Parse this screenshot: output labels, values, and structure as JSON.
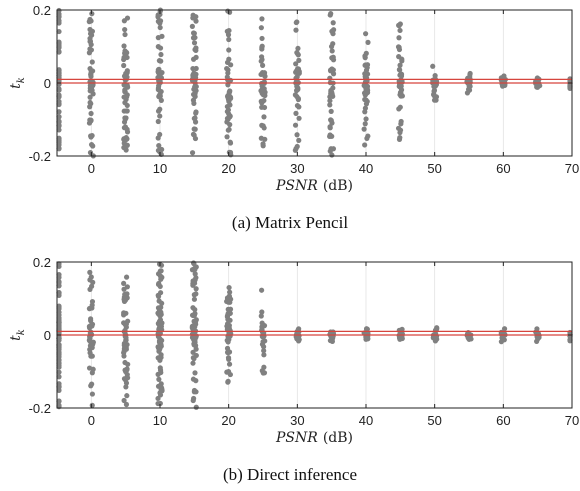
{
  "chart_data": [
    {
      "type": "scatter",
      "panel": "a",
      "caption": "(a) Matrix Pencil",
      "xlabel_symbol": "PSNR",
      "xlabel_unit": "(dB)",
      "ylabel_symbol": "t",
      "ylabel_sub": "k",
      "xlim": [
        -5,
        70
      ],
      "ylim": [
        -0.2,
        0.2
      ],
      "xticks": [
        0,
        10,
        20,
        30,
        40,
        50,
        60,
        70
      ],
      "yticks": [
        -0.2,
        0,
        0.2
      ],
      "ytick_labels": [
        "-0.2",
        "0",
        "0.2"
      ],
      "grid": "vertical",
      "marker_color": "#808080",
      "ref_lines": {
        "color": "#d6453d",
        "y": [
          0.0,
          0.01
        ]
      },
      "columns": [
        {
          "x": -5,
          "spread": 0.2,
          "count": 60
        },
        {
          "x": 0,
          "spread": 0.2,
          "count": 55
        },
        {
          "x": 5,
          "spread": 0.2,
          "count": 55
        },
        {
          "x": 10,
          "spread": 0.2,
          "count": 55
        },
        {
          "x": 15,
          "spread": 0.2,
          "count": 55
        },
        {
          "x": 20,
          "spread": 0.2,
          "count": 50
        },
        {
          "x": 25,
          "spread": 0.19,
          "count": 45
        },
        {
          "x": 30,
          "spread": 0.19,
          "count": 45
        },
        {
          "x": 35,
          "spread": 0.2,
          "count": 45
        },
        {
          "x": 40,
          "spread": 0.17,
          "count": 45
        },
        {
          "x": 45,
          "spread": 0.18,
          "count": 45
        },
        {
          "x": 50,
          "spread": 0.05,
          "count": 25
        },
        {
          "x": 55,
          "spread": 0.028,
          "count": 20
        },
        {
          "x": 60,
          "spread": 0.02,
          "count": 18
        },
        {
          "x": 65,
          "spread": 0.015,
          "count": 16
        },
        {
          "x": 70,
          "spread": 0.015,
          "count": 16
        }
      ]
    },
    {
      "type": "scatter",
      "panel": "b",
      "caption": "(b) Direct inference",
      "xlabel_symbol": "PSNR",
      "xlabel_unit": "(dB)",
      "ylabel_symbol": "t",
      "ylabel_sub": "k",
      "xlim": [
        -5,
        70
      ],
      "ylim": [
        -0.2,
        0.2
      ],
      "xticks": [
        0,
        10,
        20,
        30,
        40,
        50,
        60,
        70
      ],
      "yticks": [
        -0.2,
        0,
        0.2
      ],
      "ytick_labels": [
        "-0.2",
        "0",
        "0.2"
      ],
      "grid": "vertical",
      "marker_color": "#808080",
      "ref_lines": {
        "color": "#d6453d",
        "y": [
          0.0,
          0.01
        ]
      },
      "columns": [
        {
          "x": -5,
          "spread": 0.2,
          "count": 80
        },
        {
          "x": 0,
          "spread": 0.2,
          "count": 45
        },
        {
          "x": 5,
          "spread": 0.2,
          "count": 60
        },
        {
          "x": 10,
          "spread": 0.2,
          "count": 90
        },
        {
          "x": 15,
          "spread": 0.2,
          "count": 70
        },
        {
          "x": 20,
          "spread": 0.13,
          "count": 55
        },
        {
          "x": 25,
          "spread": 0.14,
          "count": 25
        },
        {
          "x": 30,
          "spread": 0.02,
          "count": 14
        },
        {
          "x": 35,
          "spread": 0.02,
          "count": 14
        },
        {
          "x": 40,
          "spread": 0.02,
          "count": 14
        },
        {
          "x": 45,
          "spread": 0.02,
          "count": 14
        },
        {
          "x": 50,
          "spread": 0.02,
          "count": 14
        },
        {
          "x": 55,
          "spread": 0.02,
          "count": 14
        },
        {
          "x": 60,
          "spread": 0.02,
          "count": 14
        },
        {
          "x": 65,
          "spread": 0.02,
          "count": 14
        },
        {
          "x": 70,
          "spread": 0.02,
          "count": 14
        }
      ]
    }
  ]
}
